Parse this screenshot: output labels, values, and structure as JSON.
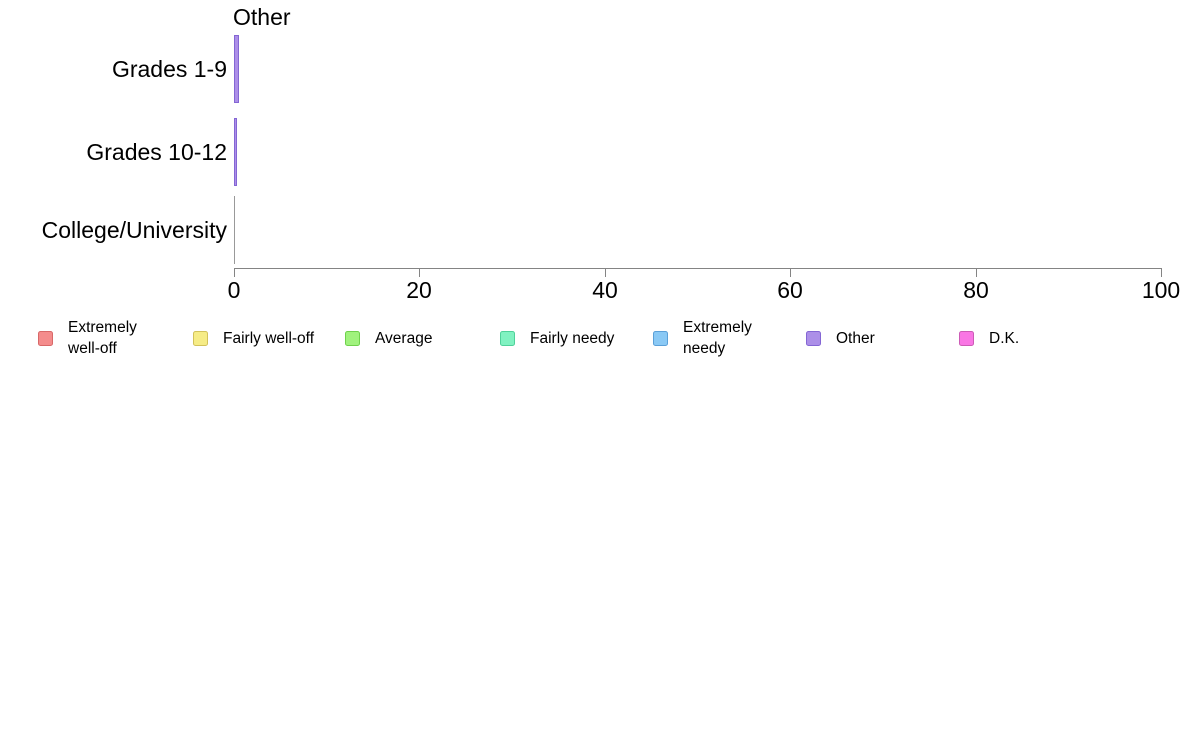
{
  "chart_data": {
    "type": "bar",
    "orientation": "horizontal",
    "title": "Other",
    "categories": [
      "Grades 1-9",
      "Grades 10-12",
      "College/University"
    ],
    "series": [
      {
        "name": "Extremely well-off",
        "fill": "#F48C8C",
        "border": "#D86868",
        "values": [
          0,
          0,
          0
        ]
      },
      {
        "name": "Fairly well-off",
        "fill": "#F6EC86",
        "border": "#D2C25A",
        "values": [
          0,
          0,
          0
        ]
      },
      {
        "name": "Average",
        "fill": "#A0F27D",
        "border": "#6FD14C",
        "values": [
          0,
          0,
          0
        ]
      },
      {
        "name": "Fairly needy",
        "fill": "#80F2C1",
        "border": "#4FD19A",
        "values": [
          0,
          0,
          0
        ]
      },
      {
        "name": "Extremely needy",
        "fill": "#8AC9F5",
        "border": "#5BA0D8",
        "values": [
          0,
          0,
          0
        ]
      },
      {
        "name": "Other",
        "fill": "#AC8FE8",
        "border": "#8466D4",
        "values": [
          0.5,
          0.3,
          0.1
        ]
      },
      {
        "name": "D.K.",
        "fill": "#F976E4",
        "border": "#CC5BB6",
        "values": [
          0,
          0,
          0
        ]
      }
    ],
    "xlim": [
      0,
      100
    ],
    "xticks": [
      "0",
      "20",
      "40",
      "60",
      "80",
      "100"
    ],
    "grid": false,
    "legend_position": "bottom"
  },
  "legend": {
    "items": [
      {
        "label": "Extremely\nwell-off",
        "color": "#F48C8C",
        "border": "#D86868"
      },
      {
        "label": "Fairly well-off",
        "color": "#F6EC86",
        "border": "#D2C25A"
      },
      {
        "label": "Average",
        "color": "#A0F27D",
        "border": "#6FD14C"
      },
      {
        "label": "Fairly needy",
        "color": "#80F2C1",
        "border": "#4FD19A"
      },
      {
        "label": "Extremely\nneedy",
        "color": "#8AC9F5",
        "border": "#5BA0D8"
      },
      {
        "label": "Other",
        "color": "#AC8FE8",
        "border": "#8466D4"
      },
      {
        "label": "D.K.",
        "color": "#F976E4",
        "border": "#CC5BB6"
      }
    ]
  },
  "axis": {
    "color": "#848484",
    "tick_label_color": "#000000",
    "zero_bar_color": "#999999"
  }
}
